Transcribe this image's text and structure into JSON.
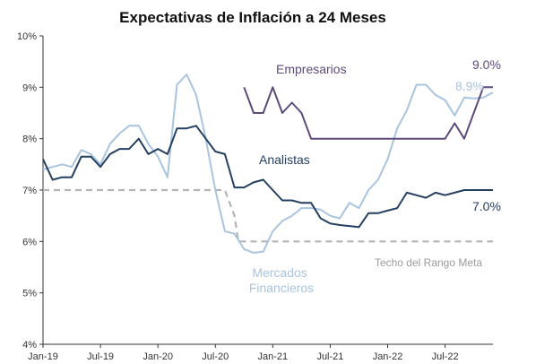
{
  "chart_data": {
    "type": "line",
    "title": "Expectativas de Inflación a 24 Meses",
    "ylim": [
      4,
      10
    ],
    "y_ticks": [
      "4%",
      "5%",
      "6%",
      "7%",
      "8%",
      "9%",
      "10%"
    ],
    "x_ticks": [
      "Jan-19",
      "Jul-19",
      "Jan-20",
      "Jul-20",
      "Jan-21",
      "Jul-21",
      "Jan-22",
      "Jul-22"
    ],
    "x_tick_months": [
      0,
      6,
      12,
      18,
      24,
      30,
      36,
      42
    ],
    "x_range": [
      0,
      47
    ],
    "series": [
      {
        "name": "Analistas",
        "label": "Analistas",
        "end_label": "7.0%",
        "color": "#243f60",
        "dashed": false,
        "x": [
          0,
          1,
          2,
          3,
          4,
          5,
          6,
          7,
          8,
          9,
          10,
          11,
          12,
          13,
          14,
          15,
          16,
          17,
          18,
          19,
          20,
          21,
          22,
          23,
          24,
          25,
          26,
          27,
          28,
          29,
          30,
          31,
          32,
          33,
          34,
          35,
          36,
          37,
          38,
          39,
          40,
          41,
          42,
          43,
          44,
          45,
          46,
          47
        ],
        "values": [
          7.6,
          7.2,
          7.25,
          7.25,
          7.65,
          7.65,
          7.45,
          7.7,
          7.8,
          7.8,
          8.0,
          7.7,
          7.8,
          7.7,
          8.2,
          8.2,
          8.25,
          8.0,
          7.75,
          7.7,
          7.05,
          7.05,
          7.15,
          7.2,
          7.0,
          6.8,
          6.8,
          6.75,
          6.75,
          6.45,
          6.35,
          6.32,
          6.3,
          6.28,
          6.55,
          6.55,
          6.6,
          6.65,
          6.95,
          6.9,
          6.85,
          6.95,
          6.9,
          6.95,
          7.0,
          7.0,
          7.0,
          7.0
        ]
      },
      {
        "name": "Mercados Financieros",
        "label": "Mercados Financieros",
        "end_label": "8.9%",
        "color": "#a9c4de",
        "dashed": false,
        "x": [
          0,
          1,
          2,
          3,
          4,
          5,
          6,
          7,
          8,
          9,
          10,
          11,
          12,
          13,
          14,
          15,
          16,
          17,
          18,
          19,
          20,
          21,
          22,
          23,
          24,
          25,
          26,
          27,
          28,
          29,
          30,
          31,
          32,
          33,
          34,
          35,
          36,
          37,
          38,
          39,
          40,
          41,
          42,
          43,
          44,
          45,
          46,
          47
        ],
        "values": [
          7.4,
          7.45,
          7.5,
          7.45,
          7.78,
          7.7,
          7.5,
          7.9,
          8.1,
          8.25,
          8.25,
          7.9,
          7.65,
          7.25,
          9.05,
          9.25,
          8.85,
          8.0,
          7.0,
          6.2,
          6.15,
          5.85,
          5.78,
          5.8,
          6.2,
          6.4,
          6.5,
          6.65,
          6.65,
          6.62,
          6.5,
          6.45,
          6.75,
          6.65,
          7.0,
          7.2,
          7.6,
          8.2,
          8.55,
          9.05,
          9.05,
          8.85,
          8.75,
          8.45,
          8.8,
          8.78,
          8.8,
          8.9
        ]
      },
      {
        "name": "Empresarios",
        "label": "Empresarios",
        "end_label": "9.0%",
        "color": "#5c4a7d",
        "dashed": false,
        "x": [
          21,
          22,
          23,
          24,
          25,
          26,
          27,
          28,
          29,
          30,
          31,
          32,
          33,
          34,
          35,
          36,
          37,
          38,
          39,
          40,
          41,
          42,
          43,
          44,
          45,
          46,
          47
        ],
        "values": [
          9.0,
          8.5,
          8.5,
          9.0,
          8.5,
          8.7,
          8.5,
          8.0,
          8.0,
          8.0,
          8.0,
          8.0,
          8.0,
          8.0,
          8.0,
          8.0,
          8.0,
          8.0,
          8.0,
          8.0,
          8.0,
          8.0,
          8.3,
          8.0,
          8.5,
          9.0,
          9.0
        ]
      },
      {
        "name": "Techo del Rango Meta",
        "label": "Techo del Rango Meta",
        "end_label": "",
        "color": "#b4b4b4",
        "dashed": true,
        "x": [
          0,
          19,
          20,
          20.4,
          47
        ],
        "values": [
          7.0,
          7.0,
          6.5,
          6.0,
          6.0
        ]
      }
    ]
  }
}
